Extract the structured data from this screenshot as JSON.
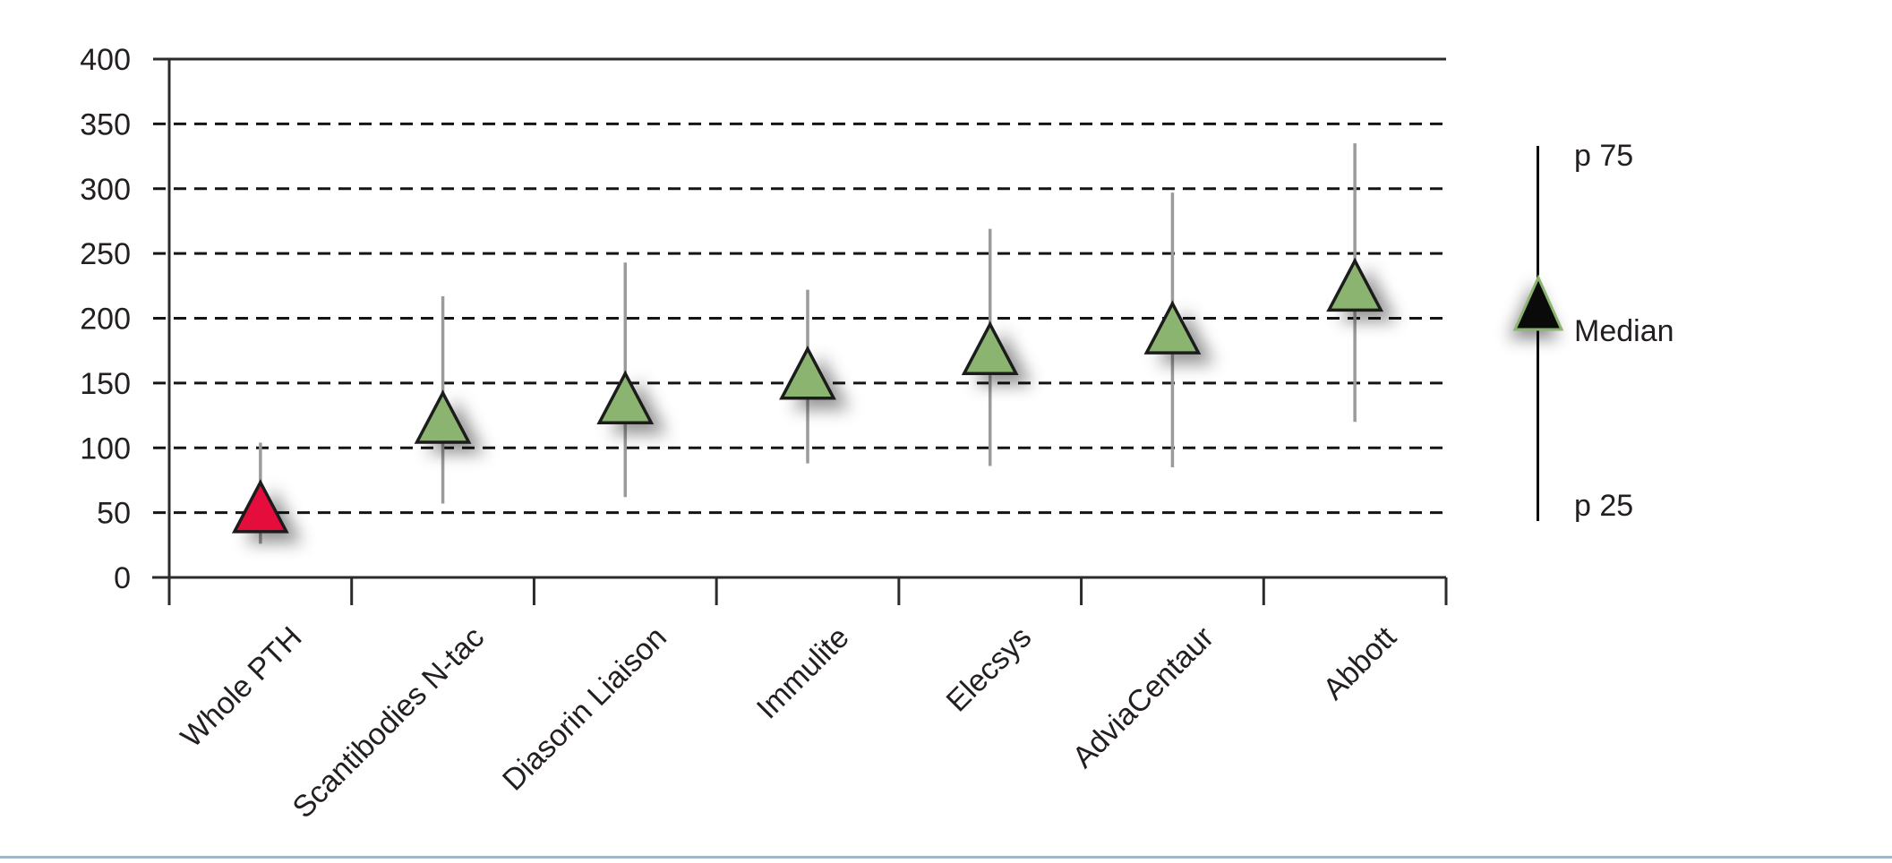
{
  "figure": {
    "background_color": "#ffffff",
    "text_color": "#231f20",
    "bottom_rule_color": "#a2b6ca",
    "axis_color": "#2b2b2b",
    "gridline_color": "#141414",
    "whisker_color": "#9b9b9b",
    "marker_outline_color": "#1a1a1a"
  },
  "legend": {
    "p75_label": "p 75",
    "median_label": "Median",
    "p25_label": "p 25",
    "triangle_fill": "#0a0a0a",
    "triangle_outline": "#8cb471"
  },
  "chart_data": {
    "type": "scatter",
    "variant": "median-triangle-with-p25-p75-whiskers",
    "title": "",
    "xlabel": "",
    "ylabel": "",
    "ylim": [
      0,
      400
    ],
    "ytick_step": 50,
    "yticks": [
      0,
      50,
      100,
      150,
      200,
      250,
      300,
      350,
      400
    ],
    "grid": "horizontal dashed lines at 50-350, solid border at 400 and 0",
    "legend_position": "right",
    "categories": [
      "Whole PTH",
      "Scantibodies N-tac",
      "Diasorin Liaison",
      "Immulite",
      "Elecsys",
      "AdviaCentaur",
      "Abbott"
    ],
    "series": [
      {
        "name": "Whole PTH",
        "p25": 26,
        "median": 54,
        "p75": 104,
        "marker_color": "#e40f3b"
      },
      {
        "name": "Scantibodies N-tac",
        "p25": 57,
        "median": 123,
        "p75": 217,
        "marker_color": "#8cb471"
      },
      {
        "name": "Diasorin Liaison",
        "p25": 62,
        "median": 138,
        "p75": 243,
        "marker_color": "#8cb471"
      },
      {
        "name": "Immulite",
        "p25": 88,
        "median": 157,
        "p75": 222,
        "marker_color": "#8cb471"
      },
      {
        "name": "Elecsys",
        "p25": 86,
        "median": 176,
        "p75": 269,
        "marker_color": "#8cb471"
      },
      {
        "name": "AdviaCentaur",
        "p25": 85,
        "median": 192,
        "p75": 297,
        "marker_color": "#8cb471"
      },
      {
        "name": "Abbott",
        "p25": 120,
        "median": 225,
        "p75": 335,
        "marker_color": "#8cb471"
      }
    ]
  }
}
